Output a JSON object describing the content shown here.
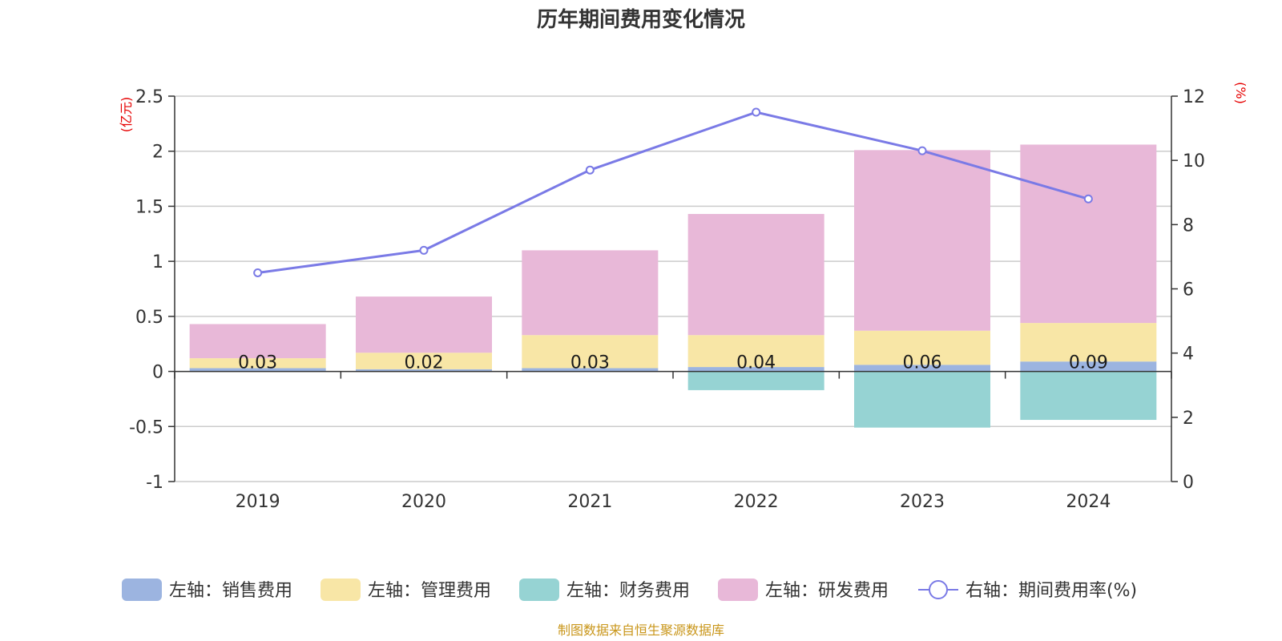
{
  "chart_data": {
    "type": "bar",
    "title": "历年期间费用变化情况",
    "categories": [
      "2019",
      "2020",
      "2021",
      "2022",
      "2023",
      "2024"
    ],
    "left_axis": {
      "unit": "(亿元)",
      "ylim": [
        -1,
        2.5
      ],
      "ticks": [
        "2.5",
        "2",
        "1.5",
        "1",
        "0.5",
        "0",
        "-0.5",
        "-1"
      ]
    },
    "right_axis": {
      "unit": "(%)",
      "ylim": [
        0,
        12
      ],
      "ticks": [
        "12",
        "10",
        "8",
        "6",
        "4",
        "2",
        "0"
      ]
    },
    "series": [
      {
        "name": "左轴：销售费用",
        "type": "bar",
        "color": "#9cb4e0",
        "values": [
          0.03,
          0.02,
          0.03,
          0.04,
          0.06,
          0.09
        ],
        "labels": [
          "0.03",
          "0.02",
          "0.03",
          "0.04",
          "0.06",
          "0.09"
        ]
      },
      {
        "name": "左轴：管理费用",
        "type": "bar",
        "color": "#f8e6a6",
        "values": [
          0.09,
          0.15,
          0.3,
          0.29,
          0.31,
          0.35
        ]
      },
      {
        "name": "左轴：财务费用",
        "type": "bar",
        "color": "#96d3d3",
        "values": [
          0.0,
          0.0,
          0.0,
          -0.17,
          -0.51,
          -0.44
        ]
      },
      {
        "name": "左轴：研发费用",
        "type": "bar",
        "color": "#e8b8d8",
        "values": [
          0.31,
          0.51,
          0.77,
          1.1,
          1.64,
          1.62
        ]
      },
      {
        "name": "右轴：期间费用率(%)",
        "type": "line",
        "color": "#7a7ae6",
        "values": [
          6.5,
          7.2,
          9.7,
          11.5,
          10.3,
          8.8
        ]
      }
    ],
    "grid": true,
    "legend_position": "bottom"
  },
  "source_note": "制图数据来自恒生聚源数据库"
}
